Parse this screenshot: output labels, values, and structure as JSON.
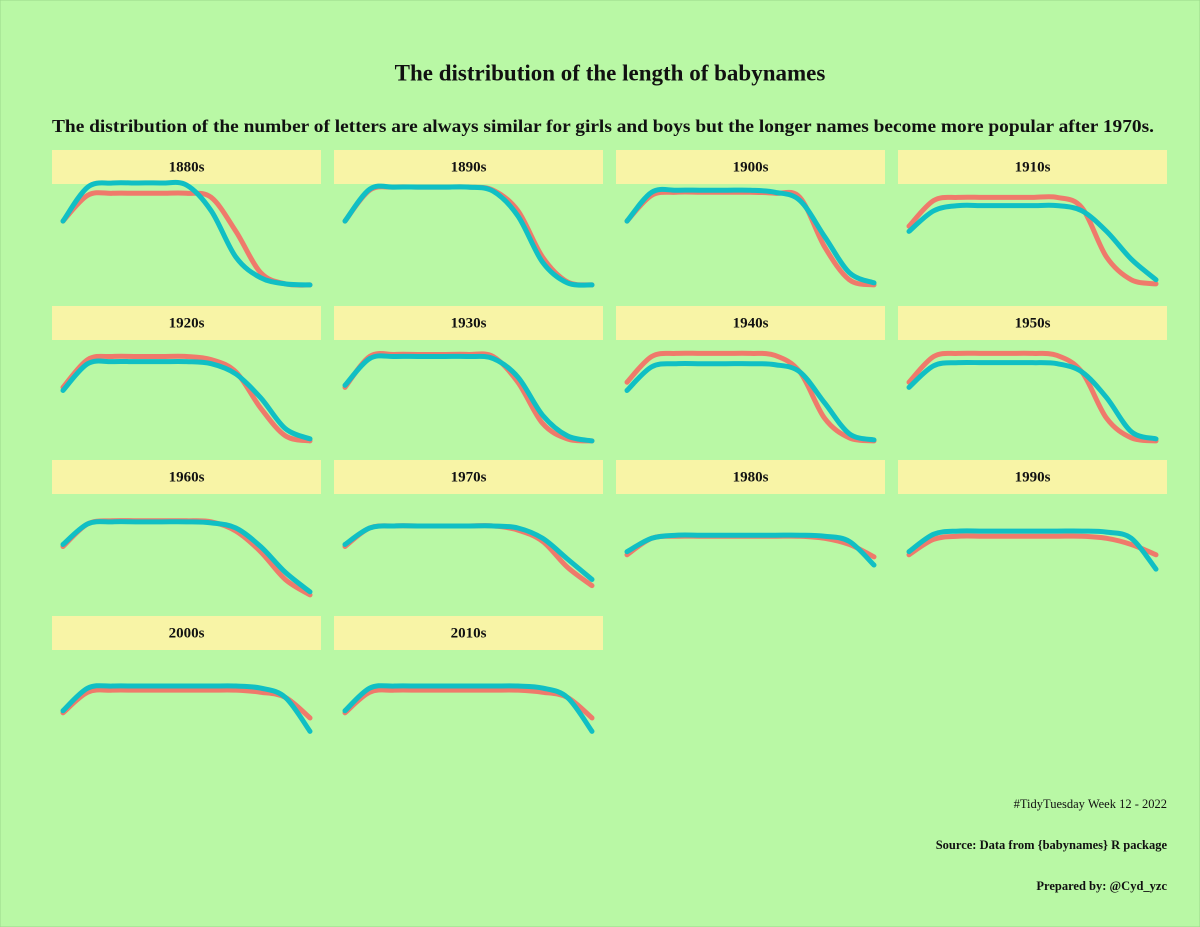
{
  "title": "The distribution of the length of babynames",
  "subtitle": "The distribution of the number of letters are always similar for girls and boys but the longer names become more popular after 1970s.",
  "caption": [
    "#TidyTuesday Week 12 - 2022",
    "Source: Data from {babynames} R package",
    "Prepared by: @Cyd_yzc"
  ],
  "chart_data": [
    {
      "type": "line",
      "title": "1880s",
      "series": [
        {
          "color": "#ef7a6b",
          "values": [
            65,
            90,
            92,
            92,
            92,
            92,
            88,
            55,
            15,
            4,
            3
          ]
        },
        {
          "color": "#10bfc4",
          "values": [
            65,
            98,
            102,
            102,
            102,
            100,
            75,
            30,
            10,
            4,
            3
          ]
        }
      ]
    },
    {
      "type": "line",
      "title": "1890s",
      "series": [
        {
          "color": "#ef7a6b",
          "values": [
            65,
            95,
            98,
            98,
            98,
            98,
            95,
            75,
            30,
            6,
            3
          ]
        },
        {
          "color": "#10bfc4",
          "values": [
            65,
            96,
            98,
            98,
            98,
            98,
            94,
            70,
            25,
            5,
            3
          ]
        }
      ]
    },
    {
      "type": "line",
      "title": "1900s",
      "series": [
        {
          "color": "#ef7a6b",
          "values": [
            65,
            90,
            93,
            93,
            93,
            93,
            92,
            88,
            40,
            8,
            3
          ]
        },
        {
          "color": "#10bfc4",
          "values": [
            65,
            93,
            95,
            95,
            95,
            95,
            93,
            85,
            50,
            15,
            5
          ]
        }
      ]
    },
    {
      "type": "line",
      "title": "1910s",
      "series": [
        {
          "color": "#ef7a6b",
          "values": [
            60,
            85,
            88,
            88,
            88,
            88,
            88,
            78,
            30,
            8,
            4
          ]
        },
        {
          "color": "#10bfc4",
          "values": [
            55,
            75,
            80,
            80,
            80,
            80,
            80,
            75,
            55,
            28,
            8
          ]
        }
      ]
    },
    {
      "type": "line",
      "title": "1920s",
      "series": [
        {
          "color": "#ef7a6b",
          "values": [
            55,
            82,
            85,
            85,
            85,
            85,
            82,
            70,
            35,
            8,
            3
          ]
        },
        {
          "color": "#10bfc4",
          "values": [
            52,
            78,
            80,
            80,
            80,
            80,
            78,
            68,
            45,
            15,
            5
          ]
        }
      ]
    },
    {
      "type": "line",
      "title": "1930s",
      "series": [
        {
          "color": "#ef7a6b",
          "values": [
            55,
            85,
            87,
            87,
            87,
            87,
            85,
            60,
            20,
            5,
            3
          ]
        },
        {
          "color": "#10bfc4",
          "values": [
            57,
            83,
            85,
            85,
            85,
            85,
            83,
            65,
            28,
            8,
            3
          ]
        }
      ]
    },
    {
      "type": "line",
      "title": "1940s",
      "series": [
        {
          "color": "#ef7a6b",
          "values": [
            60,
            85,
            88,
            88,
            88,
            88,
            86,
            70,
            25,
            6,
            3
          ]
        },
        {
          "color": "#10bfc4",
          "values": [
            52,
            75,
            78,
            78,
            78,
            78,
            77,
            70,
            40,
            10,
            4
          ]
        }
      ]
    },
    {
      "type": "line",
      "title": "1950s",
      "series": [
        {
          "color": "#ef7a6b",
          "values": [
            60,
            85,
            88,
            88,
            88,
            88,
            86,
            70,
            25,
            6,
            3
          ]
        },
        {
          "color": "#10bfc4",
          "values": [
            55,
            76,
            79,
            79,
            79,
            79,
            78,
            70,
            45,
            12,
            5
          ]
        }
      ]
    },
    {
      "type": "line",
      "title": "1960s",
      "series": [
        {
          "color": "#ef7a6b",
          "values": [
            50,
            72,
            75,
            75,
            75,
            75,
            74,
            65,
            45,
            18,
            3
          ]
        },
        {
          "color": "#10bfc4",
          "values": [
            52,
            72,
            74,
            74,
            74,
            74,
            73,
            68,
            50,
            25,
            6
          ]
        }
      ]
    },
    {
      "type": "line",
      "title": "1970s",
      "series": [
        {
          "color": "#ef7a6b",
          "values": [
            50,
            68,
            70,
            70,
            70,
            70,
            70,
            66,
            55,
            30,
            12
          ]
        },
        {
          "color": "#10bfc4",
          "values": [
            52,
            68,
            70,
            70,
            70,
            70,
            70,
            68,
            58,
            38,
            18
          ]
        }
      ]
    },
    {
      "type": "line",
      "title": "1980s",
      "series": [
        {
          "color": "#ef7a6b",
          "values": [
            42,
            58,
            60,
            60,
            60,
            60,
            60,
            60,
            58,
            52,
            40
          ]
        },
        {
          "color": "#10bfc4",
          "values": [
            45,
            58,
            61,
            61,
            61,
            61,
            61,
            61,
            60,
            55,
            32
          ]
        }
      ]
    },
    {
      "type": "line",
      "title": "1990s",
      "series": [
        {
          "color": "#ef7a6b",
          "values": [
            42,
            57,
            60,
            60,
            60,
            60,
            60,
            60,
            58,
            52,
            42
          ]
        },
        {
          "color": "#10bfc4",
          "values": [
            45,
            62,
            65,
            65,
            65,
            65,
            65,
            65,
            64,
            58,
            28
          ]
        }
      ]
    },
    {
      "type": "line",
      "title": "2000s",
      "series": [
        {
          "color": "#ef7a6b",
          "values": [
            40,
            60,
            62,
            62,
            62,
            62,
            62,
            62,
            60,
            55,
            35
          ]
        },
        {
          "color": "#10bfc4",
          "values": [
            42,
            64,
            66,
            66,
            66,
            66,
            66,
            66,
            64,
            55,
            22
          ]
        }
      ]
    },
    {
      "type": "line",
      "title": "2010s",
      "series": [
        {
          "color": "#ef7a6b",
          "values": [
            40,
            60,
            62,
            62,
            62,
            62,
            62,
            62,
            60,
            55,
            35
          ]
        },
        {
          "color": "#10bfc4",
          "values": [
            42,
            64,
            66,
            66,
            66,
            66,
            66,
            66,
            64,
            55,
            22
          ]
        }
      ]
    }
  ]
}
